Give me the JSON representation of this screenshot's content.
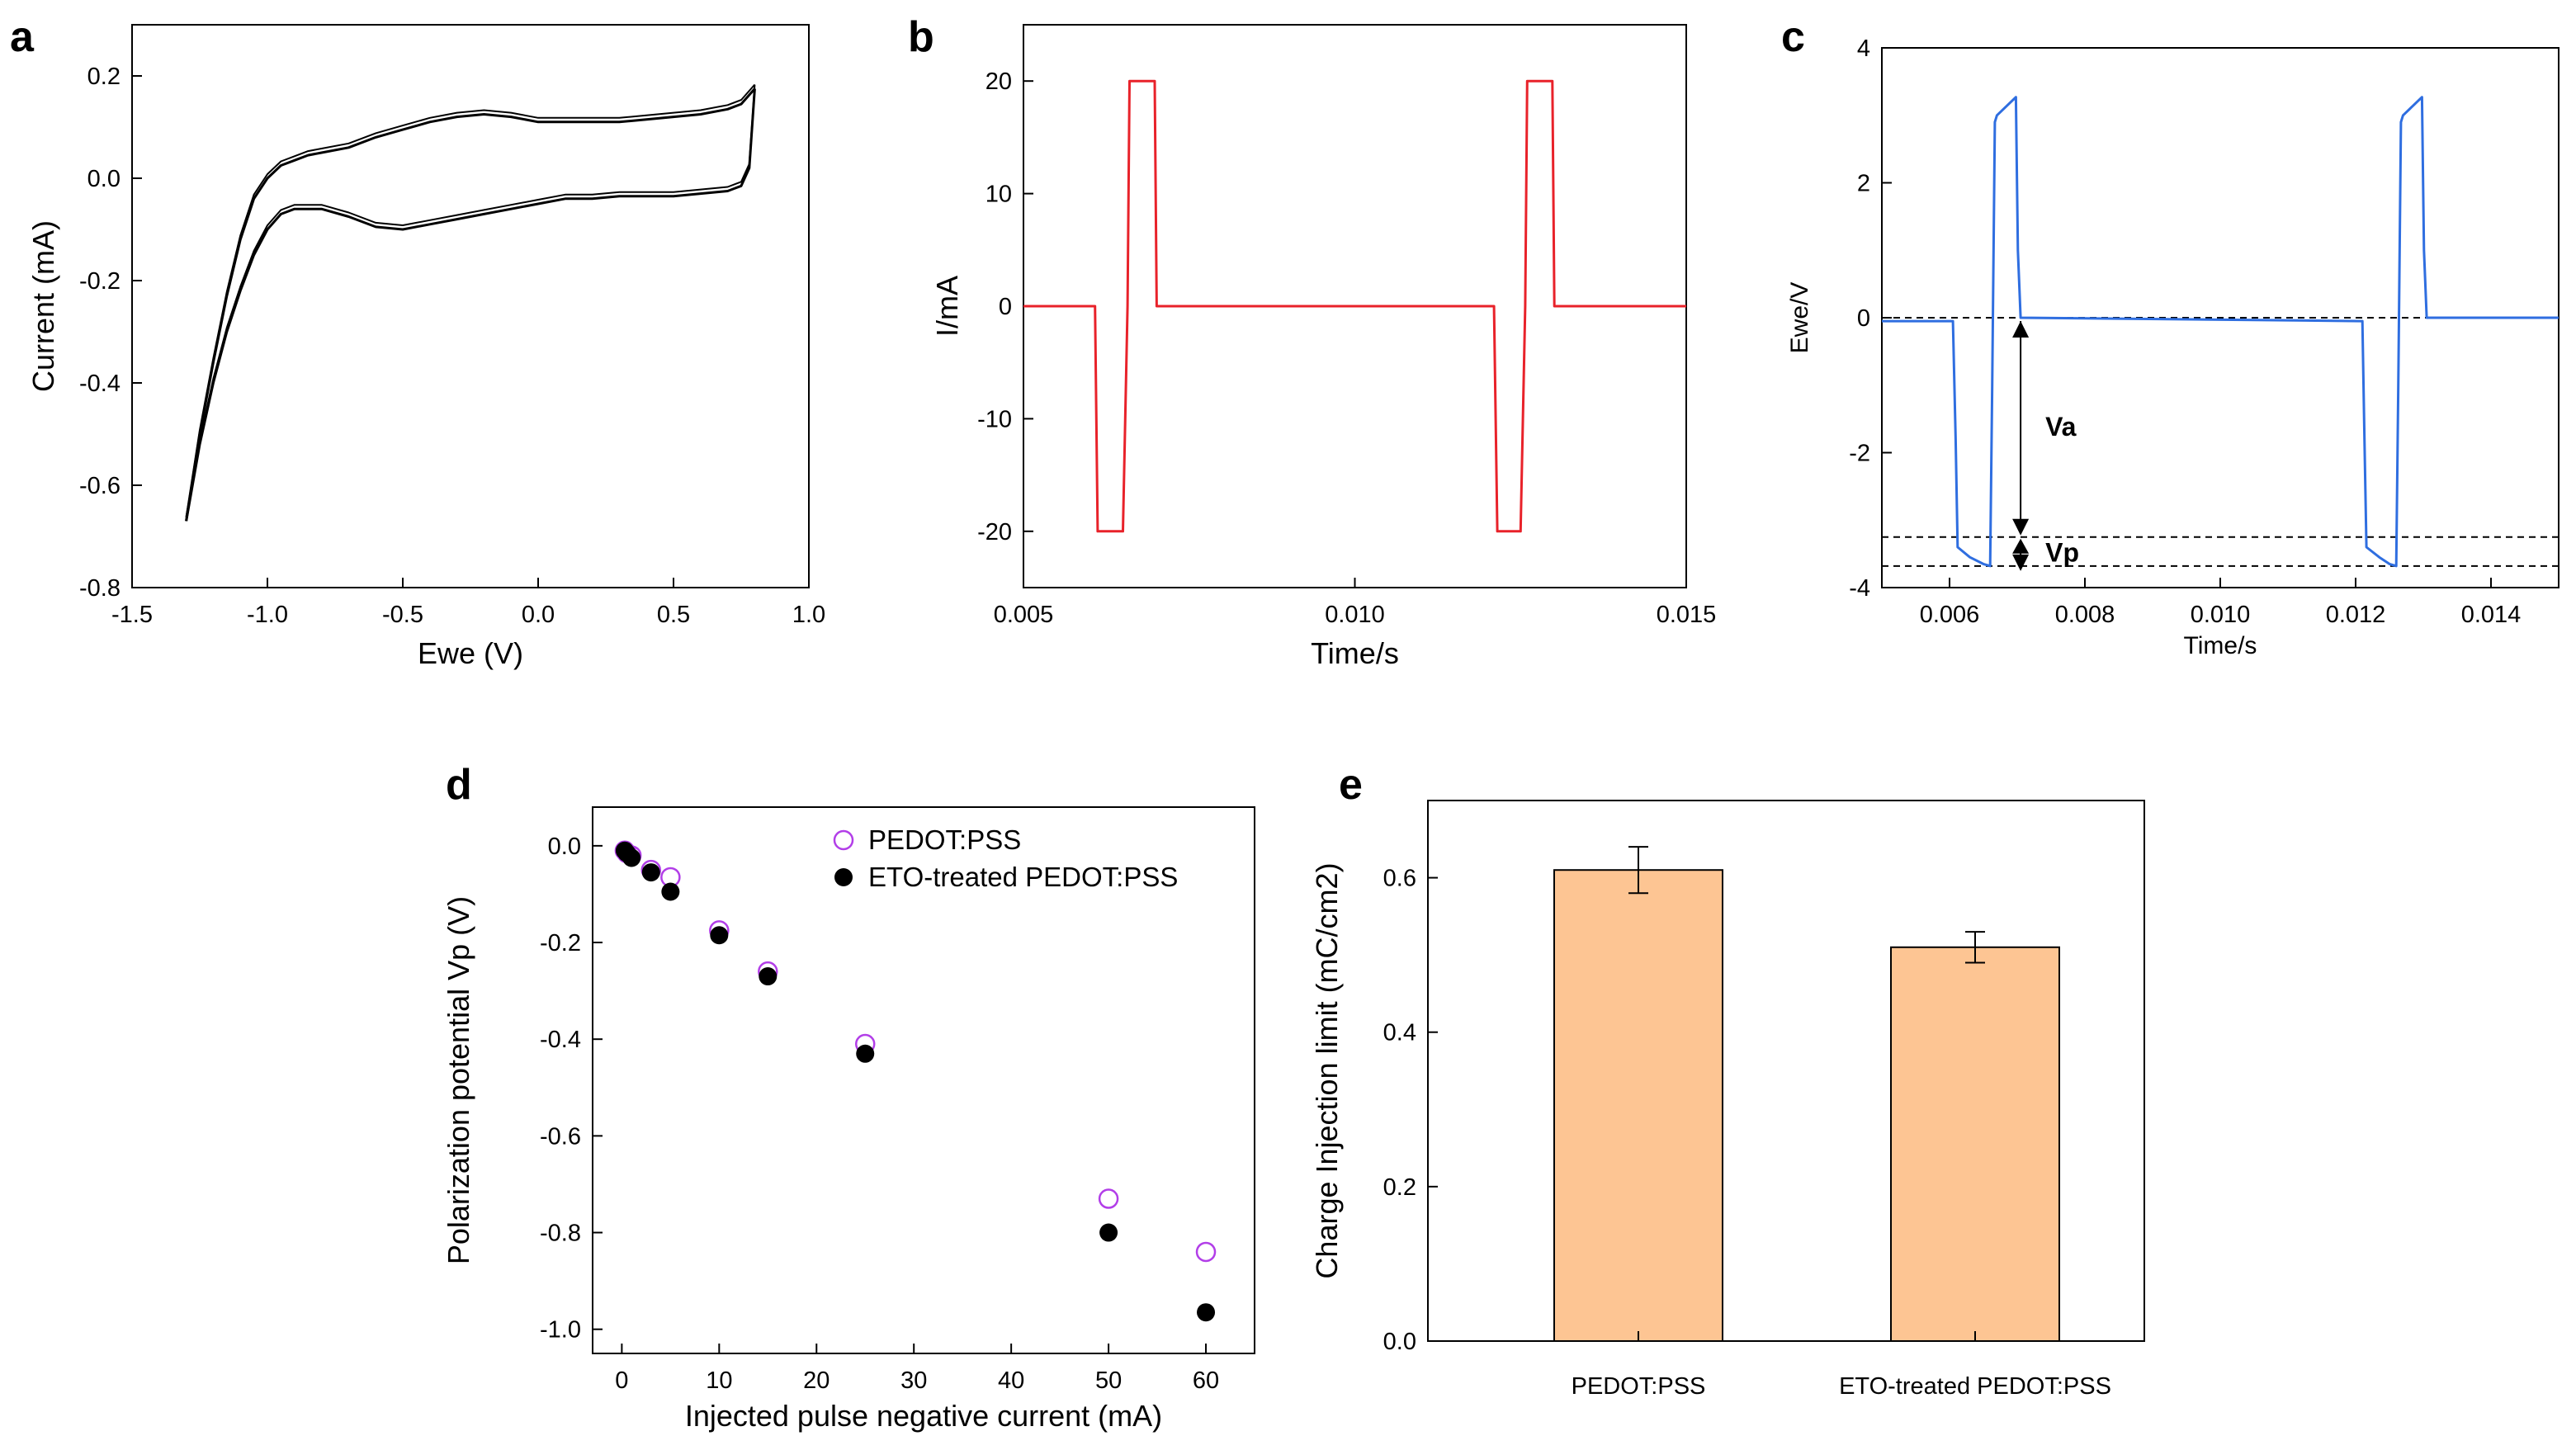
{
  "chart_data": [
    {
      "panel": "a",
      "type": "line",
      "xlabel": "Ewe (V)",
      "ylabel": "Current (mA)",
      "xlim": [
        -1.5,
        1.0
      ],
      "ylim": [
        -0.8,
        0.3
      ],
      "xticks": [
        "-1.5",
        "-1.0",
        "-0.5",
        "0.0",
        "0.5",
        "1.0"
      ],
      "yticks": [
        "-0.8",
        "-0.6",
        "-0.4",
        "-0.2",
        "0.0",
        "0.2"
      ],
      "color": "#000000",
      "series": [
        {
          "name": "forward scan",
          "x": [
            -1.3,
            -1.25,
            -1.2,
            -1.15,
            -1.1,
            -1.05,
            -1.0,
            -0.95,
            -0.9,
            -0.85,
            -0.8,
            -0.7,
            -0.6,
            -0.5,
            -0.4,
            -0.3,
            -0.2,
            -0.1,
            0.0,
            0.1,
            0.2,
            0.3,
            0.4,
            0.5,
            0.6,
            0.7,
            0.75,
            0.8
          ],
          "y": [
            -0.67,
            -0.5,
            -0.36,
            -0.23,
            -0.12,
            -0.04,
            0.0,
            0.025,
            0.035,
            0.045,
            0.05,
            0.06,
            0.08,
            0.095,
            0.11,
            0.12,
            0.125,
            0.12,
            0.11,
            0.11,
            0.11,
            0.11,
            0.115,
            0.12,
            0.125,
            0.135,
            0.145,
            0.175
          ]
        },
        {
          "name": "reverse scan",
          "x": [
            0.8,
            0.78,
            0.75,
            0.7,
            0.6,
            0.5,
            0.4,
            0.3,
            0.2,
            0.1,
            0.0,
            -0.1,
            -0.2,
            -0.3,
            -0.4,
            -0.5,
            -0.6,
            -0.7,
            -0.8,
            -0.9,
            -0.95,
            -1.0,
            -1.05,
            -1.1,
            -1.15,
            -1.2,
            -1.25,
            -1.3
          ],
          "y": [
            0.175,
            0.02,
            -0.015,
            -0.025,
            -0.03,
            -0.035,
            -0.035,
            -0.035,
            -0.04,
            -0.04,
            -0.05,
            -0.06,
            -0.07,
            -0.08,
            -0.09,
            -0.1,
            -0.095,
            -0.075,
            -0.06,
            -0.06,
            -0.07,
            -0.1,
            -0.15,
            -0.22,
            -0.3,
            -0.4,
            -0.52,
            -0.67
          ]
        }
      ]
    },
    {
      "panel": "b",
      "type": "line",
      "xlabel": "Time/s",
      "ylabel": "I/mA",
      "xlim": [
        0.005,
        0.015
      ],
      "ylim": [
        -25,
        25
      ],
      "xticks": [
        "0.005",
        "0.010",
        "0.015"
      ],
      "yticks": [
        "-20",
        "-10",
        "0",
        "10",
        "20"
      ],
      "color": "#e8222a",
      "series": [
        {
          "name": "current pulse",
          "x": [
            0.005,
            0.00608,
            0.00612,
            0.00645,
            0.0065,
            0.00657,
            0.0066,
            0.00698,
            0.00701,
            0.00705,
            0.0121,
            0.01215,
            0.01245,
            0.0125,
            0.01257,
            0.0126,
            0.01298,
            0.01301,
            0.01305,
            0.015
          ],
          "y": [
            0,
            0,
            -20,
            -20,
            -20,
            0,
            20,
            20,
            0,
            0,
            0,
            -20,
            -20,
            -20,
            0,
            20,
            20,
            0,
            0,
            0
          ]
        }
      ]
    },
    {
      "panel": "c",
      "type": "line",
      "xlabel": "Time/s",
      "ylabel": "Ewe/V",
      "xlim": [
        0.005,
        0.015
      ],
      "ylim": [
        -4,
        4
      ],
      "xticks": [
        "0.006",
        "0.008",
        "0.010",
        "0.012",
        "0.014"
      ],
      "xtick_values": [
        0.006,
        0.008,
        0.01,
        0.012,
        0.014
      ],
      "yticks": [
        "-4",
        "-2",
        "0",
        "2",
        "4"
      ],
      "color": "#2f6ee0",
      "reference_lines_y": [
        0,
        -3.25,
        -3.68
      ],
      "annotations": [
        "Va",
        "Vp"
      ],
      "series": [
        {
          "name": "potential transient",
          "x": [
            0.005,
            0.00605,
            0.00609,
            0.00612,
            0.0063,
            0.0065,
            0.0066,
            0.00663,
            0.00667,
            0.0067,
            0.00698,
            0.00701,
            0.00705,
            0.0121,
            0.01213,
            0.01216,
            0.01235,
            0.0125,
            0.0126,
            0.01263,
            0.01267,
            0.0127,
            0.01298,
            0.01301,
            0.01305,
            0.015
          ],
          "y": [
            -0.05,
            -0.05,
            -1.8,
            -3.4,
            -3.55,
            -3.65,
            -3.68,
            -1.0,
            2.9,
            3.0,
            3.27,
            1.0,
            0.0,
            -0.05,
            -1.8,
            -3.4,
            -3.55,
            -3.65,
            -3.68,
            -1.0,
            2.9,
            3.0,
            3.27,
            1.0,
            0.0,
            0.0
          ]
        }
      ]
    },
    {
      "panel": "d",
      "type": "scatter",
      "xlabel": "Injected pulse negative current (mA)",
      "ylabel": "Polarization potential Vp (V)",
      "xlim": [
        -3,
        65
      ],
      "ylim": [
        -1.05,
        0.08
      ],
      "xticks": [
        "0",
        "10",
        "20",
        "30",
        "40",
        "50",
        "60"
      ],
      "yticks": [
        "-1.0",
        "-0.8",
        "-0.6",
        "-0.4",
        "-0.2",
        "0.0"
      ],
      "series": [
        {
          "name": "PEDOT:PSS",
          "marker": "open-circle",
          "color": "#b23ee8",
          "x": [
            0.3,
            0.5,
            1,
            3,
            5,
            10,
            15,
            25,
            50,
            60
          ],
          "y": [
            -0.01,
            -0.015,
            -0.02,
            -0.05,
            -0.065,
            -0.175,
            -0.26,
            -0.41,
            -0.73,
            -0.84
          ]
        },
        {
          "name": "ETO-treated PEDOT:PSS",
          "marker": "filled-circle",
          "color": "#000000",
          "x": [
            0.3,
            0.5,
            1,
            3,
            5,
            10,
            15,
            25,
            50,
            60
          ],
          "y": [
            -0.01,
            -0.015,
            -0.025,
            -0.055,
            -0.095,
            -0.185,
            -0.27,
            -0.43,
            -0.8,
            -0.965
          ]
        }
      ]
    },
    {
      "panel": "e",
      "type": "bar",
      "ylabel": "Charge Injection limit (mC/cm2)",
      "ylim": [
        0,
        0.7
      ],
      "yticks": [
        "0.0",
        "0.2",
        "0.4",
        "0.6"
      ],
      "categories": [
        "PEDOT:PSS",
        "ETO-treated PEDOT:PSS"
      ],
      "values": [
        0.61,
        0.51
      ],
      "errors": [
        0.03,
        0.02
      ],
      "bar_color": "#fdc593"
    }
  ]
}
